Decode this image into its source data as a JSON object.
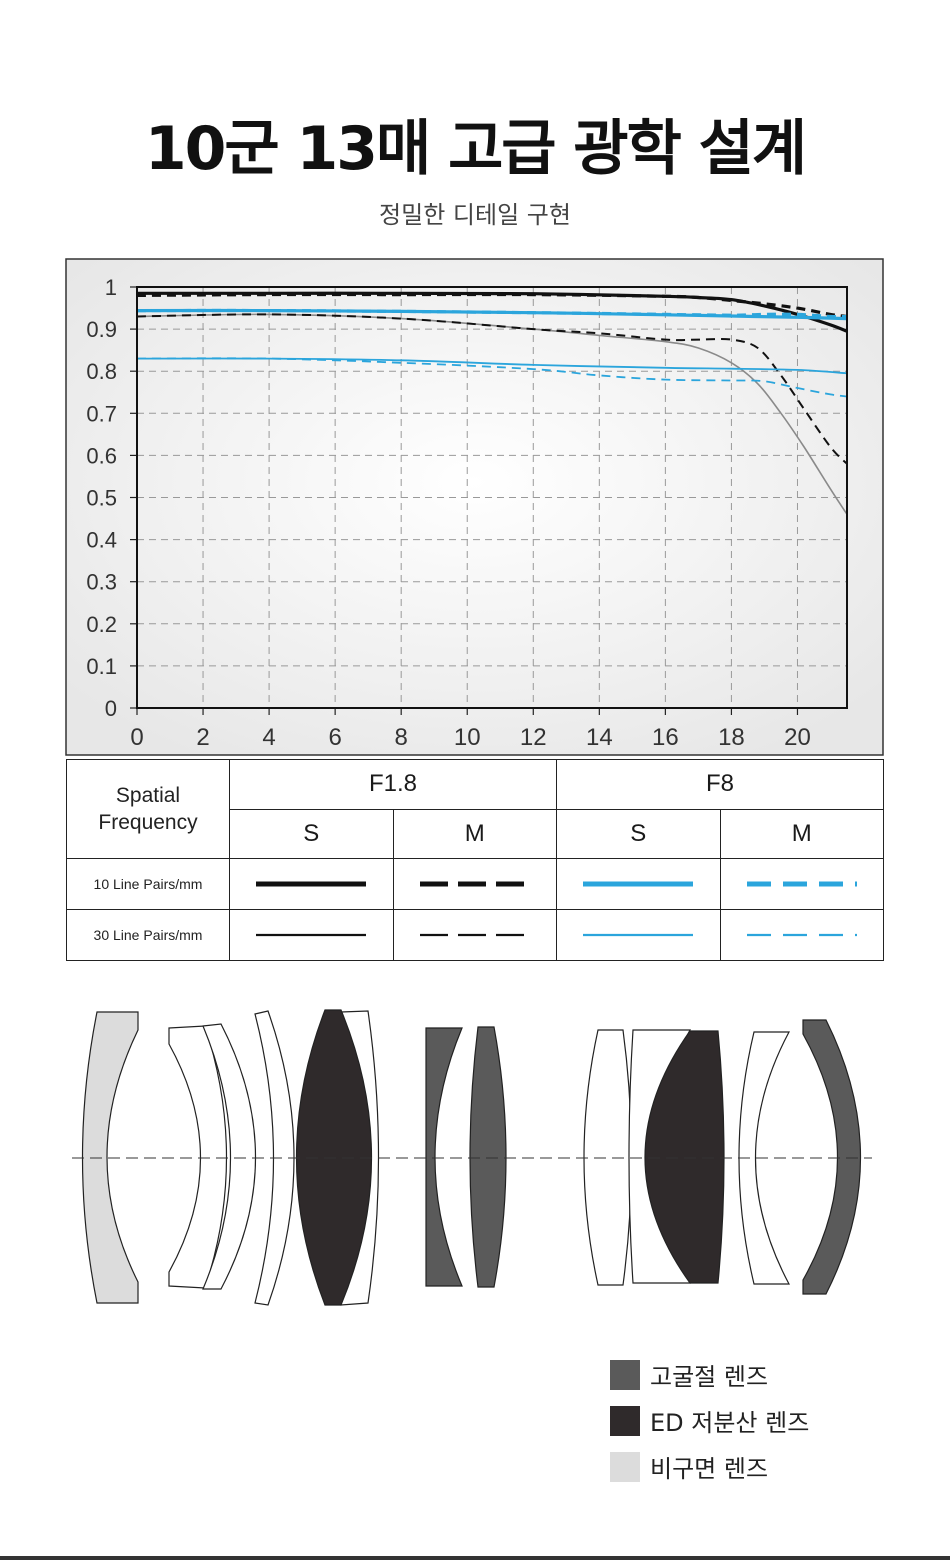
{
  "page": {
    "title": "10군 13매 고급 광학 설계",
    "subtitle": "정밀한 디테일 구현"
  },
  "colors": {
    "black": "#111111",
    "blue": "#2ba5dc",
    "gray_thin": "#8a8a8a",
    "ed": "#2f2a2b",
    "high_ref": "#5a5a5a",
    "aspherical": "#dcdcdc"
  },
  "chart_data": {
    "type": "line",
    "title": "",
    "xlabel": "",
    "ylabel": "",
    "xlim": [
      0,
      21.5
    ],
    "ylim": [
      0,
      1
    ],
    "xticks": [
      "0",
      "2",
      "4",
      "6",
      "8",
      "10",
      "12",
      "14",
      "16",
      "18",
      "20"
    ],
    "yticks": [
      "0",
      "0.1",
      "0.2",
      "0.3",
      "0.4",
      "0.5",
      "0.6",
      "0.7",
      "0.8",
      "0.9",
      "1"
    ],
    "grid": true,
    "series": [
      {
        "name": "F1.8 S 10 Line Pairs/mm",
        "color": "#111111",
        "dash": "none",
        "width": 3.2,
        "x": [
          0,
          4,
          8,
          12,
          16,
          17,
          18,
          19,
          20,
          21,
          21.5
        ],
        "y": [
          0.985,
          0.985,
          0.985,
          0.984,
          0.978,
          0.975,
          0.97,
          0.955,
          0.935,
          0.91,
          0.895
        ]
      },
      {
        "name": "F1.8 M 10 Line Pairs/mm",
        "color": "#111111",
        "dash": "9 6",
        "width": 3.2,
        "x": [
          0,
          4,
          8,
          12,
          16,
          17,
          18,
          19,
          20,
          21,
          21.5
        ],
        "y": [
          0.98,
          0.982,
          0.982,
          0.982,
          0.978,
          0.975,
          0.968,
          0.96,
          0.95,
          0.935,
          0.93
        ]
      },
      {
        "name": "F1.8 S 30 Line Pairs/mm",
        "color": "#8a8a8a",
        "dash": "none",
        "width": 1.6,
        "x": [
          0,
          4,
          8,
          12,
          14,
          16,
          17,
          18,
          18.8,
          19.5,
          20.2,
          21,
          21.5
        ],
        "y": [
          0.93,
          0.935,
          0.925,
          0.9,
          0.885,
          0.87,
          0.855,
          0.82,
          0.77,
          0.7,
          0.62,
          0.52,
          0.46
        ]
      },
      {
        "name": "F1.8 M 30 Line Pairs/mm",
        "color": "#111111",
        "dash": "9 6",
        "width": 2,
        "x": [
          0,
          4,
          8,
          12,
          14,
          16,
          17,
          18,
          18.8,
          19.5,
          20.2,
          21,
          21.5
        ],
        "y": [
          0.93,
          0.935,
          0.925,
          0.9,
          0.89,
          0.875,
          0.875,
          0.875,
          0.855,
          0.79,
          0.71,
          0.62,
          0.58
        ]
      },
      {
        "name": "F8 S 10 Line Pairs/mm",
        "color": "#2ba5dc",
        "dash": "none",
        "width": 3.2,
        "x": [
          0,
          4,
          8,
          12,
          16,
          18,
          20,
          21.5
        ],
        "y": [
          0.944,
          0.944,
          0.942,
          0.939,
          0.934,
          0.931,
          0.928,
          0.925
        ]
      },
      {
        "name": "F8 M 10 Line Pairs/mm",
        "color": "#2ba5dc",
        "dash": "9 6",
        "width": 3.2,
        "x": [
          0,
          4,
          8,
          12,
          16,
          18,
          19,
          20,
          21,
          21.5
        ],
        "y": [
          0.944,
          0.944,
          0.942,
          0.939,
          0.935,
          0.933,
          0.935,
          0.935,
          0.93,
          0.93
        ]
      },
      {
        "name": "F8 S 30 Line Pairs/mm",
        "color": "#2ba5dc",
        "dash": "none",
        "width": 1.8,
        "x": [
          0,
          4,
          8,
          12,
          16,
          18,
          20,
          21.5
        ],
        "y": [
          0.83,
          0.83,
          0.826,
          0.815,
          0.808,
          0.806,
          0.803,
          0.795
        ]
      },
      {
        "name": "F8 M 30 Line Pairs/mm",
        "color": "#2ba5dc",
        "dash": "9 6",
        "width": 1.8,
        "x": [
          0,
          4,
          8,
          12,
          14,
          16,
          18,
          19,
          20,
          21,
          21.5
        ],
        "y": [
          0.83,
          0.83,
          0.82,
          0.805,
          0.79,
          0.78,
          0.778,
          0.776,
          0.76,
          0.745,
          0.74
        ]
      }
    ]
  },
  "table": {
    "spatial_frequency": "Spatial\nFrequency",
    "apertures": [
      "F1.8",
      "F8"
    ],
    "types": [
      "S",
      "M",
      "S",
      "M"
    ],
    "rows": [
      {
        "label": "10 Line Pairs/mm",
        "samples": [
          {
            "color": "#111111",
            "dash": "none",
            "width": 5
          },
          {
            "color": "#111111",
            "dash": "28 10",
            "width": 5
          },
          {
            "color": "#2ba5dc",
            "dash": "none",
            "width": 5
          },
          {
            "color": "#2ba5dc",
            "dash": "24 12",
            "width": 5
          }
        ]
      },
      {
        "label": "30 Line Pairs/mm",
        "samples": [
          {
            "color": "#111111",
            "dash": "none",
            "width": 2.2
          },
          {
            "color": "#111111",
            "dash": "28 10",
            "width": 2.2
          },
          {
            "color": "#2ba5dc",
            "dash": "none",
            "width": 2.2
          },
          {
            "color": "#2ba5dc",
            "dash": "24 12",
            "width": 2.2
          }
        ]
      }
    ]
  },
  "legend": [
    {
      "label": "고굴절 렌즈",
      "color": "#5a5a5a"
    },
    {
      "label": "ED 저분산 렌즈",
      "color": "#2f2a2b"
    },
    {
      "label": "비구면 렌즈",
      "color": "#dcdcdc"
    }
  ]
}
